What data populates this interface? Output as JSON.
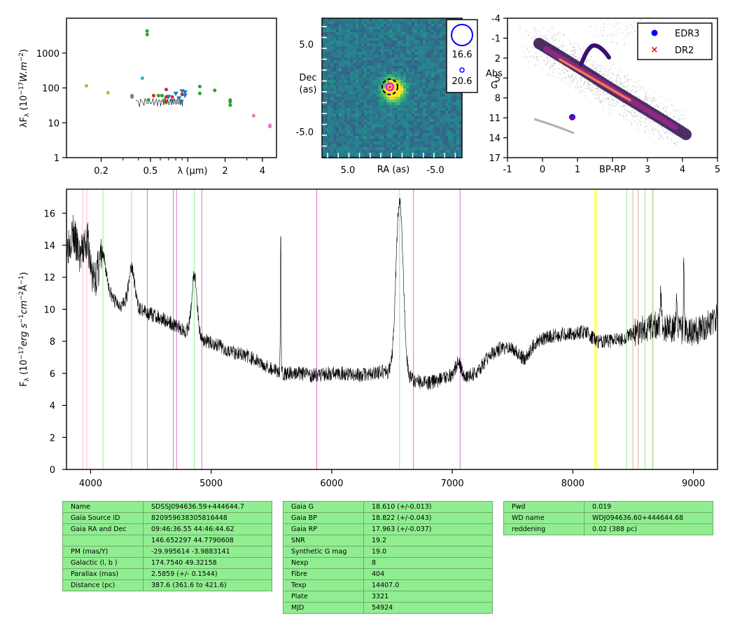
{
  "sed": {
    "ylabel": "λF_λ (10^-17 W.m^-2)",
    "xlabel": "λ (μm)",
    "yticks": [
      "1",
      "10",
      "100",
      "1000"
    ],
    "xticks": [
      "0.2",
      "0.5",
      "2",
      "4"
    ],
    "points": [
      {
        "x": 0.152,
        "y": 115,
        "color": "#bcbd22"
      },
      {
        "x": 0.227,
        "y": 73,
        "color": "#bcbd22"
      },
      {
        "x": 0.355,
        "y": 55,
        "color": "#7f7f7f"
      },
      {
        "x": 0.355,
        "y": 60,
        "color": "#7f7f7f"
      },
      {
        "x": 0.43,
        "y": 190,
        "color": "#17becf"
      },
      {
        "x": 0.47,
        "y": 4300,
        "color": "#2ca02c"
      },
      {
        "x": 0.47,
        "y": 3400,
        "color": "#2ca02c"
      },
      {
        "x": 0.48,
        "y": 45,
        "color": "#2ca02c"
      },
      {
        "x": 0.53,
        "y": 60,
        "color": "#d62728"
      },
      {
        "x": 0.58,
        "y": 60,
        "color": "#2ca02c"
      },
      {
        "x": 0.62,
        "y": 60,
        "color": "#2ca02c"
      },
      {
        "x": 0.65,
        "y": 45,
        "color": "#2ca02c"
      },
      {
        "x": 0.65,
        "y": 40,
        "color": "#2ca02c"
      },
      {
        "x": 0.67,
        "y": 90,
        "color": "#d62728"
      },
      {
        "x": 0.67,
        "y": 55,
        "color": "#d62728"
      },
      {
        "x": 0.67,
        "y": 40,
        "color": "#d62728"
      },
      {
        "x": 0.75,
        "y": 55,
        "color": "#d62728"
      },
      {
        "x": 0.9,
        "y": 65,
        "color": "#d62728"
      },
      {
        "x": 1.25,
        "y": 110,
        "color": "#2ca02c"
      },
      {
        "x": 1.25,
        "y": 70,
        "color": "#2ca02c"
      },
      {
        "x": 1.65,
        "y": 85,
        "color": "#2ca02c"
      },
      {
        "x": 2.2,
        "y": 45,
        "color": "#2ca02c"
      },
      {
        "x": 2.2,
        "y": 40,
        "color": "#2ca02c"
      },
      {
        "x": 2.2,
        "y": 32,
        "color": "#2ca02c"
      },
      {
        "x": 3.4,
        "y": 16,
        "color": "#e377c2"
      },
      {
        "x": 4.6,
        "y": 8.5,
        "color": "#e377c2"
      },
      {
        "x": 4.6,
        "y": 7.8,
        "color": "#e377c2"
      }
    ],
    "triangles": [
      {
        "x": 0.7,
        "y": 55
      },
      {
        "x": 0.75,
        "y": 42
      },
      {
        "x": 0.8,
        "y": 68
      },
      {
        "x": 0.85,
        "y": 50
      },
      {
        "x": 0.9,
        "y": 80
      },
      {
        "x": 0.88,
        "y": 40
      },
      {
        "x": 0.95,
        "y": 75
      },
      {
        "x": 0.95,
        "y": 60
      }
    ]
  },
  "image_panel": {
    "xlabel": "RA (as)",
    "ylabel_1": "Dec",
    "ylabel_2": "(as)",
    "xticks": [
      "5.0",
      "-5.0"
    ],
    "yticks": [
      "5.0",
      "-5.0"
    ],
    "legend": [
      "16.6",
      "20.6"
    ]
  },
  "hr": {
    "xlabel": "BP-RP",
    "ylabel_1": "Abs",
    "ylabel_2": "G",
    "xticks": [
      "-1",
      "0",
      "1",
      "3",
      "4",
      "5"
    ],
    "yticks": [
      "-4",
      "-1",
      "2",
      "5",
      "8",
      "11",
      "14",
      "17"
    ],
    "legend": [
      {
        "label": "EDR3",
        "color": "#0000ff",
        "marker": "dot"
      },
      {
        "label": "DR2",
        "color": "#ff0000",
        "marker": "x"
      }
    ],
    "target": {
      "bp_rp": 0.85,
      "absg": 10.9
    }
  },
  "chart_data": {
    "type": "line",
    "ylabel": "F_λ (10^-17 erg s^-1 cm^-2 Å^-1)",
    "xlim": [
      3800,
      9200
    ],
    "ylim": [
      0,
      17.5
    ],
    "xticks": [
      "4000",
      "5000",
      "6000",
      "7000",
      "8000",
      "9000"
    ],
    "yticks": [
      "0",
      "2",
      "4",
      "6",
      "8",
      "10",
      "12",
      "14",
      "16"
    ],
    "continuum": [
      [
        3800,
        13.8
      ],
      [
        3850,
        14.8
      ],
      [
        3900,
        13.5
      ],
      [
        3950,
        12.5
      ],
      [
        4000,
        11.6
      ],
      [
        4050,
        11.8
      ],
      [
        4100,
        11.5
      ],
      [
        4150,
        11.0
      ],
      [
        4200,
        10.5
      ],
      [
        4250,
        10.3
      ],
      [
        4300,
        10.2
      ],
      [
        4400,
        10.0
      ],
      [
        4500,
        9.7
      ],
      [
        4600,
        9.4
      ],
      [
        4700,
        9.0
      ],
      [
        4800,
        8.6
      ],
      [
        4900,
        8.2
      ],
      [
        5000,
        7.9
      ],
      [
        5100,
        7.6
      ],
      [
        5200,
        7.3
      ],
      [
        5300,
        7.1
      ],
      [
        5400,
        6.7
      ],
      [
        5500,
        6.3
      ],
      [
        5600,
        6.0
      ],
      [
        5700,
        6.0
      ],
      [
        5800,
        5.9
      ],
      [
        5900,
        5.9
      ],
      [
        6000,
        6.0
      ],
      [
        6100,
        6.0
      ],
      [
        6200,
        5.9
      ],
      [
        6300,
        5.9
      ],
      [
        6400,
        6.1
      ],
      [
        6500,
        6.0
      ],
      [
        6550,
        6.3
      ],
      [
        6600,
        5.8
      ],
      [
        6700,
        5.5
      ],
      [
        6800,
        5.4
      ],
      [
        6900,
        5.6
      ],
      [
        7000,
        5.9
      ],
      [
        7050,
        6.8
      ],
      [
        7100,
        5.8
      ],
      [
        7200,
        6.0
      ],
      [
        7300,
        7.0
      ],
      [
        7400,
        7.6
      ],
      [
        7500,
        7.5
      ],
      [
        7550,
        7.2
      ],
      [
        7600,
        6.9
      ],
      [
        7700,
        8.0
      ],
      [
        7800,
        8.3
      ],
      [
        7900,
        8.4
      ],
      [
        8000,
        8.5
      ],
      [
        8100,
        8.6
      ],
      [
        8200,
        8.0
      ],
      [
        8300,
        8.0
      ],
      [
        8400,
        8.1
      ],
      [
        8500,
        8.5
      ],
      [
        8600,
        8.8
      ],
      [
        8700,
        9.0
      ],
      [
        8800,
        8.8
      ],
      [
        8900,
        8.7
      ],
      [
        9000,
        8.6
      ],
      [
        9100,
        8.9
      ],
      [
        9200,
        9.5
      ]
    ],
    "features": [
      {
        "x": 3970,
        "peak": 14.3,
        "width": 25
      },
      {
        "x": 4101,
        "peak": 13.3,
        "width": 30
      },
      {
        "x": 4340,
        "peak": 12.6,
        "width": 25
      },
      {
        "x": 4861,
        "peak": 12.1,
        "width": 22
      },
      {
        "x": 5577,
        "peak": 15.0,
        "width": 3
      },
      {
        "x": 6563,
        "peak": 16.7,
        "width": 30
      },
      {
        "x": 8860,
        "peak": 10.5,
        "width": 5
      },
      {
        "x": 8730,
        "peak": 11.0,
        "width": 4
      },
      {
        "x": 8920,
        "peak": 13.3,
        "width": 3
      }
    ],
    "lines": [
      {
        "x": 3934,
        "color": "#ffb6c1"
      },
      {
        "x": 3968,
        "color": "#ffb6c1"
      },
      {
        "x": 4102,
        "color": "#90ee90"
      },
      {
        "x": 4340,
        "color": "#90ee90"
      },
      {
        "x": 4471,
        "color": "#da70d6"
      },
      {
        "x": 4686,
        "color": "#da70d6"
      },
      {
        "x": 4713,
        "color": "#da70d6"
      },
      {
        "x": 4861,
        "color": "#90ee90"
      },
      {
        "x": 4922,
        "color": "#da70d6"
      },
      {
        "x": 5876,
        "color": "#da70d6"
      },
      {
        "x": 6563,
        "color": "#90ee90"
      },
      {
        "x": 6678,
        "color": "#da70d6"
      },
      {
        "x": 7065,
        "color": "#da70d6"
      },
      {
        "x": 8183,
        "color": "#ffff00"
      },
      {
        "x": 8195,
        "color": "#ffff00"
      },
      {
        "x": 8446,
        "color": "#90ee90"
      },
      {
        "x": 8498,
        "color": "#d2b48c"
      },
      {
        "x": 8542,
        "color": "#d2b48c"
      },
      {
        "x": 8598,
        "color": "#90ee90"
      },
      {
        "x": 8662,
        "color": "#d2b48c"
      },
      {
        "x": 8665,
        "color": "#90ee90"
      }
    ]
  },
  "table1": [
    [
      "Name",
      "SDSSJ094636.59+444644.7"
    ],
    [
      "Gaia Source ID",
      "820959638305816448"
    ],
    [
      "Gaia RA and Dec",
      "09:46:36.55    44:46:44.62"
    ],
    [
      "",
      "146.652297    44.7790608"
    ],
    [
      "PM (mas/Y)",
      "-29.995614    -3.9883141"
    ],
    [
      "Galactic (l, b )",
      "174.7540    49.32158"
    ],
    [
      "Parallax (mas)",
      "2.5859 (+/- 0.1544)"
    ],
    [
      "Distance (pc)",
      "387.6 (361.6 to 421.6)"
    ]
  ],
  "table2": [
    [
      "Gaia G",
      "18.610 (+/-0.013)"
    ],
    [
      "Gaia BP",
      "18.822 (+/-0.043)"
    ],
    [
      "Gaia RP",
      "17.963 (+/-0.037)"
    ],
    [
      "SNR",
      "19.2"
    ],
    [
      "Synthetic G mag",
      "19.0"
    ],
    [
      "Nexp",
      "8"
    ],
    [
      "Fibre",
      "404"
    ],
    [
      "Texp",
      "14407.0"
    ],
    [
      "Plate",
      "3321"
    ],
    [
      "MJD",
      "54924"
    ]
  ],
  "table3": [
    [
      "Pwd",
      "0.019"
    ],
    [
      "WD name",
      "WDJ094636.60+444644.68"
    ],
    [
      "reddening",
      "0.02 (388 pc)"
    ]
  ]
}
